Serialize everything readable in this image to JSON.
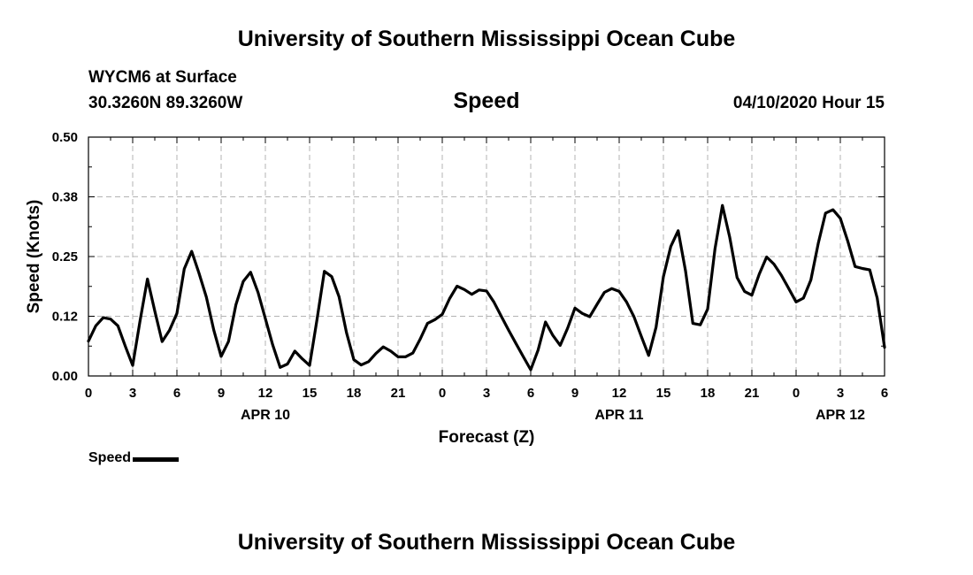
{
  "header": {
    "title": "University of Southern Mississippi Ocean Cube",
    "station": "WYCM6 at Surface",
    "coords": "30.3260N 89.3260W",
    "variable": "Speed",
    "datetime": "04/10/2020 Hour 15"
  },
  "footer": {
    "title": "University of Southern Mississippi Ocean Cube"
  },
  "legend": {
    "label": "Speed"
  },
  "chart_data": {
    "type": "line",
    "title": "Speed",
    "xlabel": "Forecast (Z)",
    "ylabel": "Speed (Knots)",
    "xlim": [
      0,
      54
    ],
    "ylim": [
      0.0,
      0.5
    ],
    "y_ticks": [
      "0.00",
      "0.12",
      "0.25",
      "0.38",
      "0.50"
    ],
    "y_tick_values": [
      0.0,
      0.125,
      0.25,
      0.375,
      0.5
    ],
    "x_ticks": [
      "0",
      "3",
      "6",
      "9",
      "12",
      "15",
      "18",
      "21",
      "0",
      "3",
      "6",
      "9",
      "12",
      "15",
      "18",
      "21",
      "0",
      "3",
      "6"
    ],
    "x_tick_values": [
      0,
      3,
      6,
      9,
      12,
      15,
      18,
      21,
      24,
      27,
      30,
      33,
      36,
      39,
      42,
      45,
      48,
      51,
      54
    ],
    "date_labels": [
      {
        "label": "APR 10",
        "x": 12
      },
      {
        "label": "APR 11",
        "x": 36
      },
      {
        "label": "APR 12",
        "x": 51
      }
    ],
    "grid": true,
    "line_color": "#000000",
    "series": [
      {
        "name": "Speed",
        "x": [
          0,
          0.5,
          1,
          1.5,
          2,
          2.5,
          3,
          3.5,
          4,
          4.5,
          5,
          5.5,
          6,
          6.5,
          7,
          7.5,
          8,
          8.5,
          9,
          9.5,
          10,
          10.5,
          11,
          11.5,
          12,
          12.5,
          13,
          13.5,
          14,
          14.5,
          15,
          15.5,
          16,
          16.5,
          17,
          17.5,
          18,
          18.5,
          19,
          19.5,
          20,
          20.5,
          21,
          21.5,
          22,
          22.5,
          23,
          23.5,
          24,
          24.5,
          25,
          25.5,
          26,
          26.5,
          27,
          27.5,
          28,
          28.5,
          29,
          29.5,
          30,
          30.5,
          31,
          31.5,
          32,
          32.5,
          33,
          33.5,
          34,
          34.5,
          35,
          35.5,
          36,
          36.5,
          37,
          37.5,
          38,
          38.5,
          39,
          39.5,
          40,
          40.5,
          41,
          41.5,
          42,
          42.5,
          43,
          43.5,
          44,
          44.5,
          45,
          45.5,
          46,
          46.5,
          47,
          47.5,
          48,
          48.5,
          49,
          49.5,
          50,
          50.5,
          51,
          51.5,
          52,
          52.5,
          53,
          53.5,
          54
        ],
        "values": [
          0.073,
          0.105,
          0.122,
          0.119,
          0.105,
          0.062,
          0.022,
          0.115,
          0.203,
          0.136,
          0.072,
          0.096,
          0.131,
          0.224,
          0.261,
          0.215,
          0.165,
          0.096,
          0.041,
          0.072,
          0.149,
          0.198,
          0.217,
          0.175,
          0.12,
          0.065,
          0.018,
          0.025,
          0.052,
          0.036,
          0.022,
          0.117,
          0.219,
          0.208,
          0.166,
          0.091,
          0.034,
          0.023,
          0.03,
          0.047,
          0.061,
          0.052,
          0.04,
          0.04,
          0.048,
          0.077,
          0.11,
          0.118,
          0.129,
          0.162,
          0.188,
          0.181,
          0.171,
          0.18,
          0.178,
          0.155,
          0.125,
          0.096,
          0.068,
          0.04,
          0.013,
          0.054,
          0.113,
          0.085,
          0.064,
          0.1,
          0.142,
          0.131,
          0.124,
          0.15,
          0.175,
          0.183,
          0.177,
          0.155,
          0.124,
          0.083,
          0.043,
          0.102,
          0.208,
          0.271,
          0.304,
          0.22,
          0.11,
          0.107,
          0.14,
          0.266,
          0.357,
          0.29,
          0.206,
          0.177,
          0.169,
          0.213,
          0.249,
          0.234,
          0.211,
          0.183,
          0.155,
          0.163,
          0.201,
          0.277,
          0.341,
          0.348,
          0.33,
          0.283,
          0.229,
          0.225,
          0.222,
          0.163,
          0.06
        ]
      }
    ]
  }
}
